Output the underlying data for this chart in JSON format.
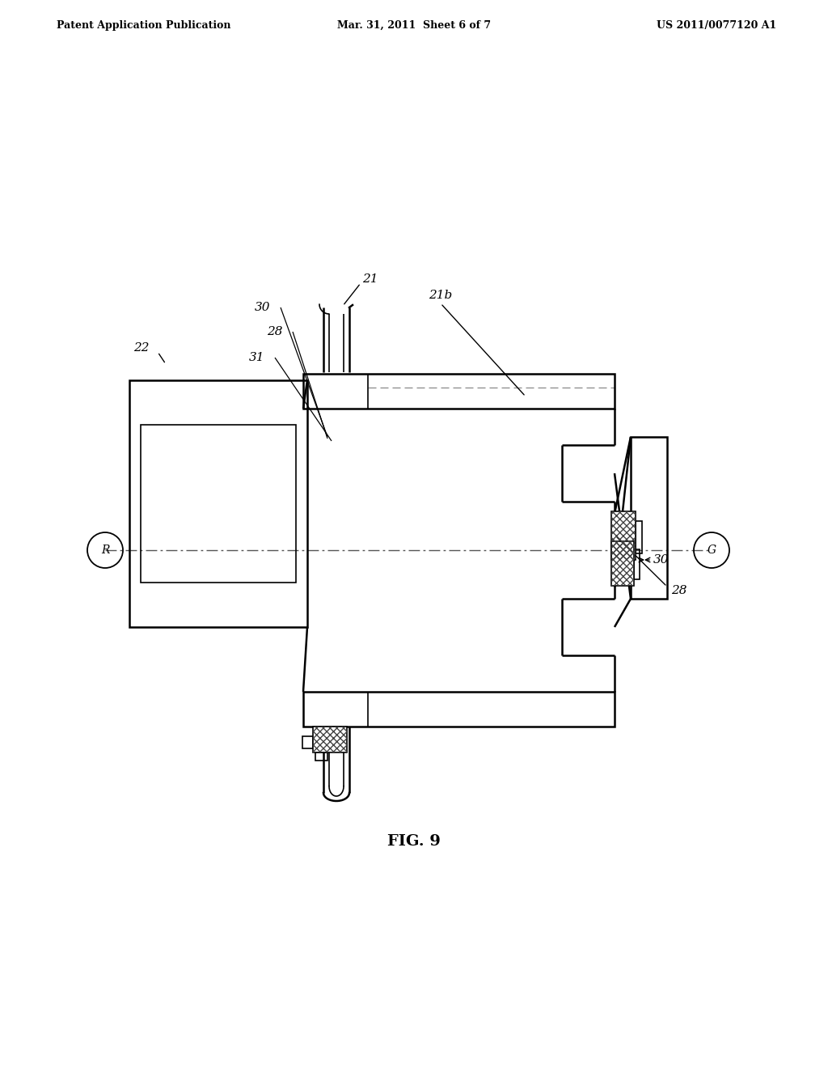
{
  "bg_color": "#ffffff",
  "line_color": "#000000",
  "header_left": "Patent Application Publication",
  "header_center": "Mar. 31, 2011  Sheet 6 of 7",
  "header_right": "US 2011/0077120 A1",
  "fig_label": "FIG. 9"
}
